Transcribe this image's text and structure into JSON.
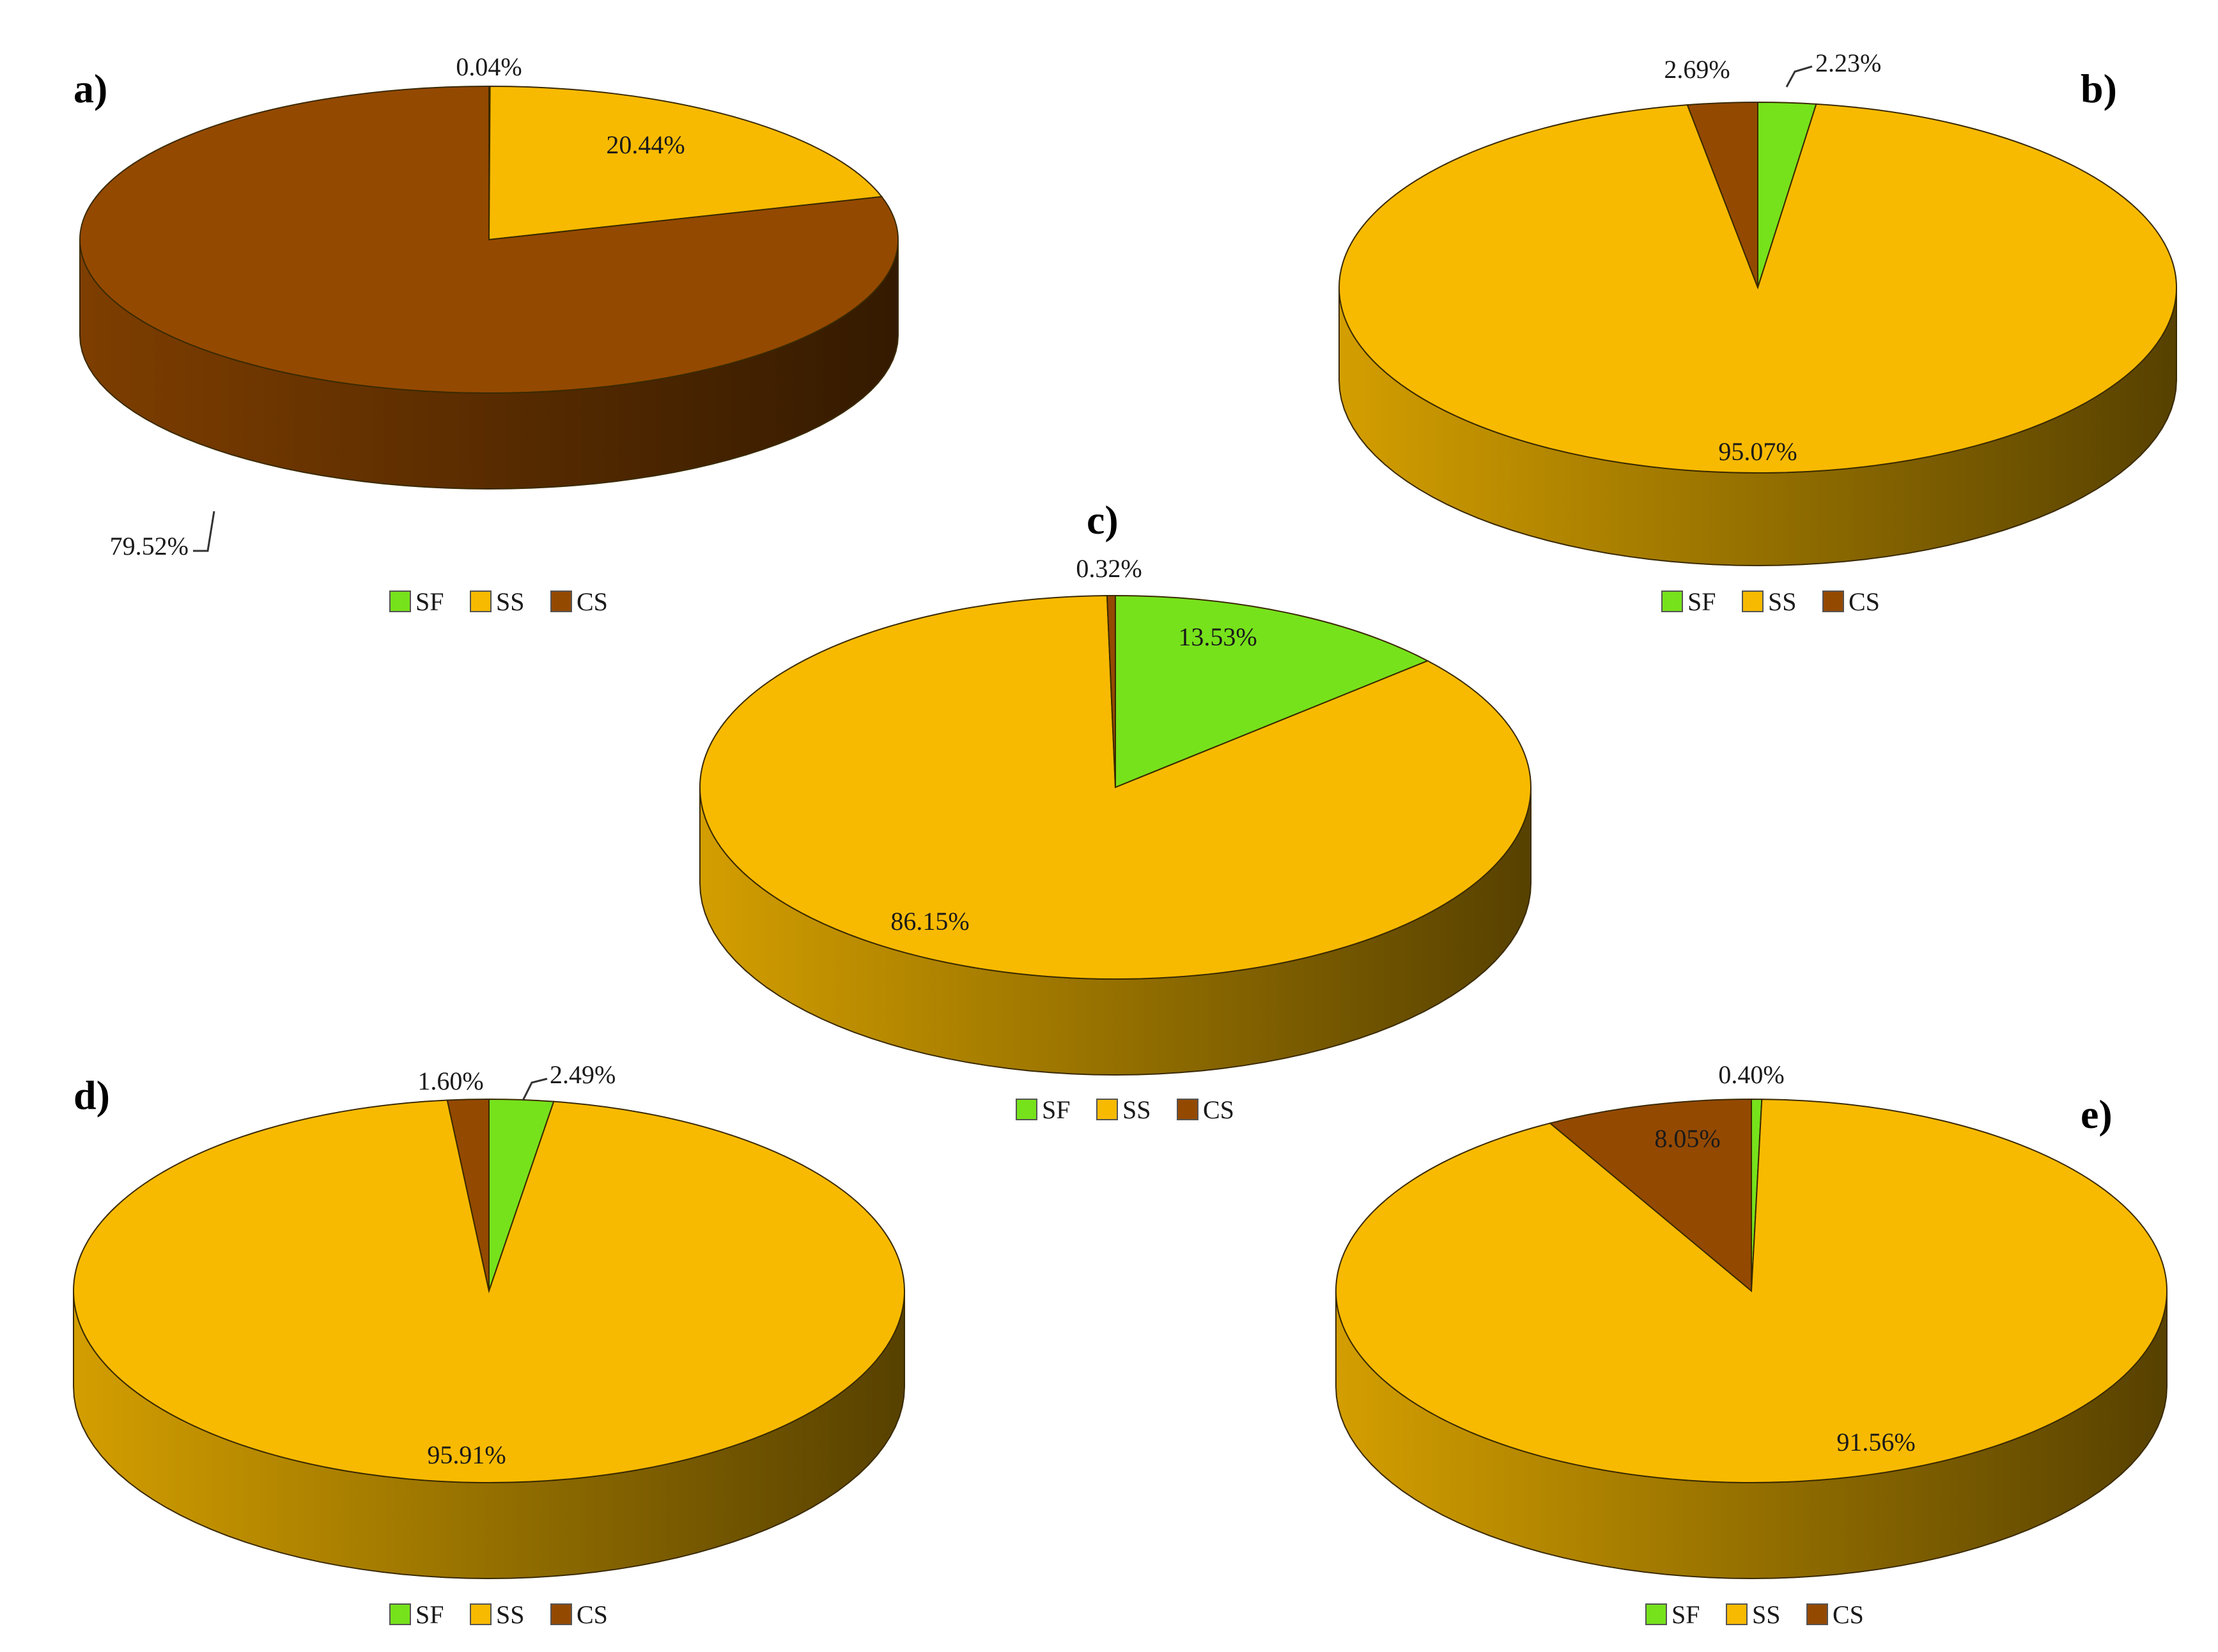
{
  "figure": {
    "colors": {
      "SF": "#76e21b",
      "SS": "#f8ba00",
      "CS": "#944900"
    },
    "legend": [
      "SF",
      "SS",
      "CS"
    ]
  },
  "chart_data": [
    {
      "type": "pie",
      "panel": "a)",
      "title": "",
      "categories": [
        "SF",
        "SS",
        "CS"
      ],
      "values": [
        0.04,
        20.44,
        79.52
      ],
      "labels": [
        "0.04%",
        "20.44%",
        "79.52%"
      ],
      "legend_placement": "bottom"
    },
    {
      "type": "pie",
      "panel": "b)",
      "title": "",
      "categories": [
        "SF",
        "SS",
        "CS"
      ],
      "values": [
        2.23,
        95.07,
        2.69
      ],
      "labels": [
        "2.23%",
        "95.07%",
        "2.69%"
      ],
      "legend_placement": "bottom"
    },
    {
      "type": "pie",
      "panel": "c)",
      "title": "",
      "categories": [
        "SF",
        "SS",
        "CS"
      ],
      "values": [
        13.53,
        86.15,
        0.32
      ],
      "labels": [
        "13.53%",
        "86.15%",
        "0.32%"
      ],
      "legend_placement": "bottom"
    },
    {
      "type": "pie",
      "panel": "d)",
      "title": "",
      "categories": [
        "SF",
        "SS",
        "CS"
      ],
      "values": [
        2.49,
        95.91,
        1.6
      ],
      "labels": [
        "2.49%",
        "95.91%",
        "1.60%"
      ],
      "legend_placement": "bottom"
    },
    {
      "type": "pie",
      "panel": "e)",
      "title": "",
      "categories": [
        "SF",
        "SS",
        "CS"
      ],
      "values": [
        0.4,
        91.56,
        8.05
      ],
      "labels": [
        "0.40%",
        "91.56%",
        "8.05%"
      ],
      "legend_placement": "bottom"
    }
  ]
}
